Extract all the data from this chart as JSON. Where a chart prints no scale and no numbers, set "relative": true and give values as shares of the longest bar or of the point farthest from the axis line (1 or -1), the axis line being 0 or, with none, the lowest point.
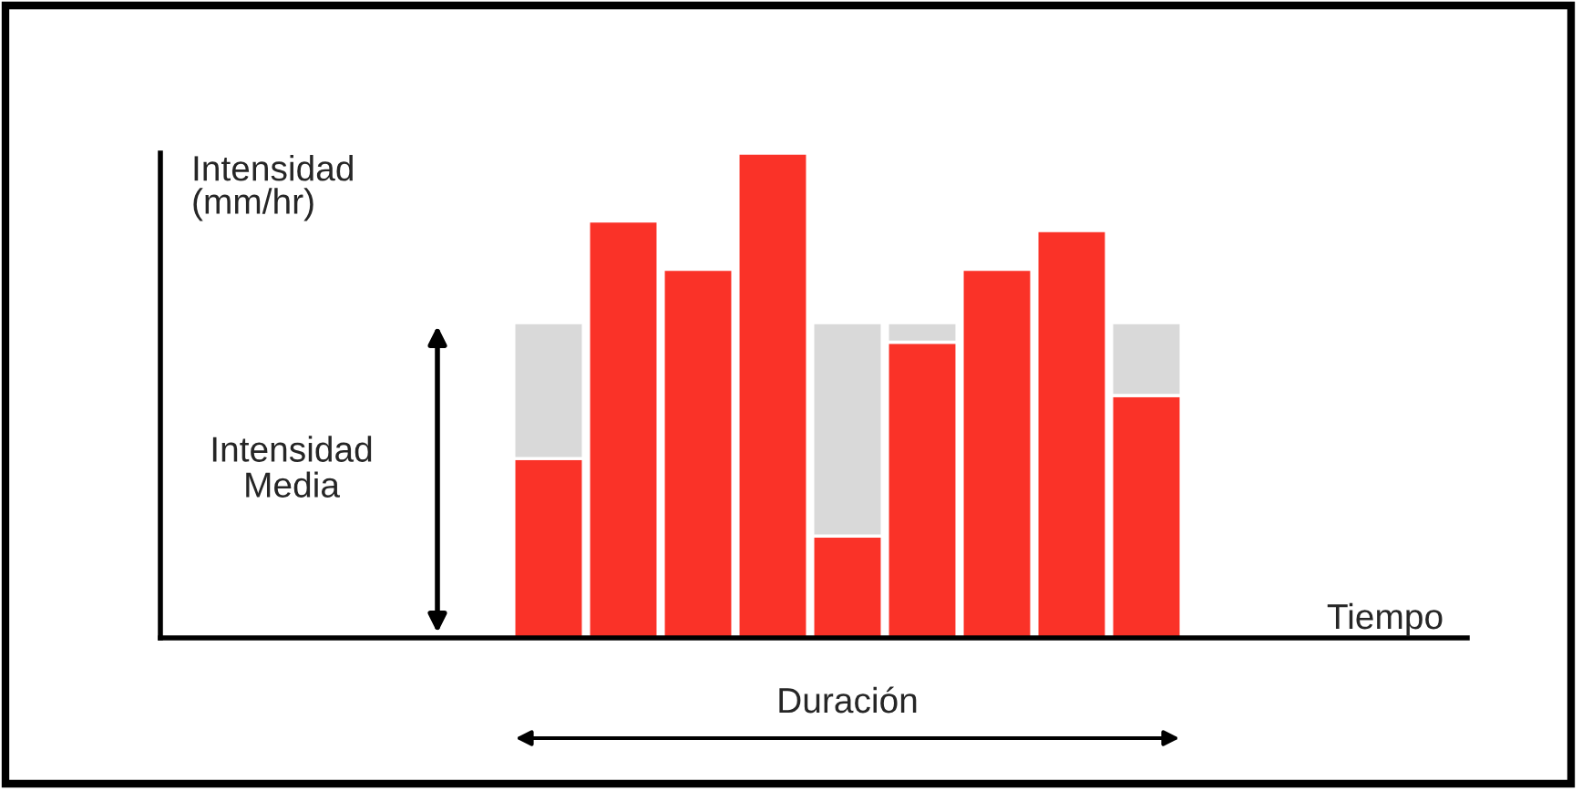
{
  "chart_data": {
    "type": "bar",
    "relative": true,
    "stacked": true,
    "xlabel": "Tiempo",
    "ylabel": "Intensidad\n(mm/hr)",
    "categories": [
      null,
      null,
      null,
      null,
      null,
      null,
      null,
      null,
      null
    ],
    "series": [
      {
        "color": "#fa3228",
        "values": [
          0.37,
          0.86,
          0.76,
          1.0,
          0.21,
          0.61,
          0.76,
          0.84,
          0.5
        ]
      },
      {
        "color": "#d9d9d9",
        "values": [
          0.28,
          null,
          null,
          null,
          0.44,
          0.04,
          null,
          null,
          0.15
        ]
      }
    ],
    "annotations": [
      "Intensidad\nMedia",
      "Duración"
    ],
    "legend": false
  }
}
